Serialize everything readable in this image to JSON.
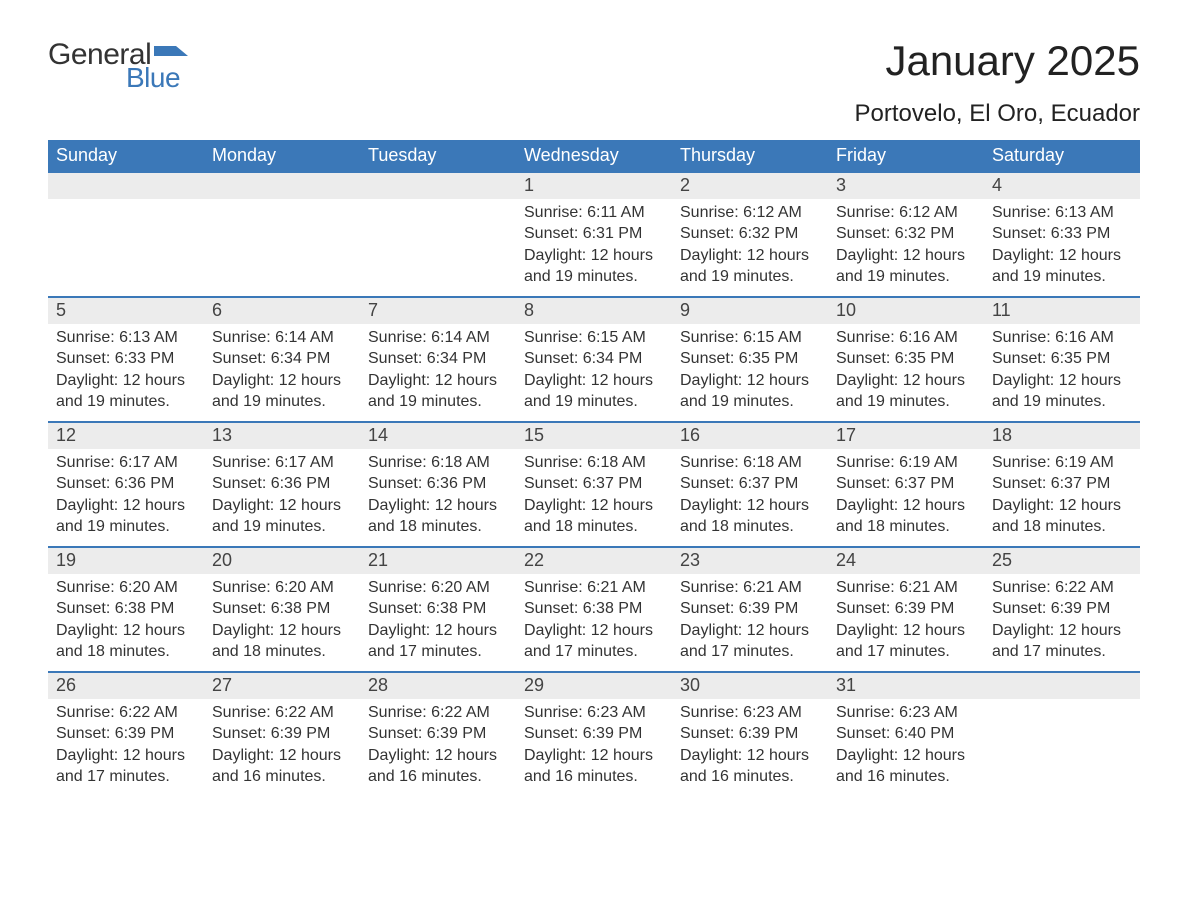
{
  "logo": {
    "text_general": "General",
    "text_blue": "Blue",
    "flag_color": "#3b78b8"
  },
  "header": {
    "month_title": "January 2025",
    "location": "Portovelo, El Oro, Ecuador"
  },
  "colors": {
    "header_bg": "#3b78b8",
    "header_text": "#ffffff",
    "daynum_bg": "#ececec",
    "border_top": "#3b78b8",
    "body_text": "#333333",
    "page_bg": "#ffffff"
  },
  "fonts": {
    "title_size_pt": 32,
    "location_size_pt": 18,
    "weekday_size_pt": 14,
    "daynum_size_pt": 14,
    "body_size_pt": 12
  },
  "weekdays": [
    "Sunday",
    "Monday",
    "Tuesday",
    "Wednesday",
    "Thursday",
    "Friday",
    "Saturday"
  ],
  "weeks": [
    [
      {
        "empty": true
      },
      {
        "empty": true
      },
      {
        "empty": true
      },
      {
        "day": "1",
        "sunrise": "Sunrise: 6:11 AM",
        "sunset": "Sunset: 6:31 PM",
        "daylight": "Daylight: 12 hours and 19 minutes."
      },
      {
        "day": "2",
        "sunrise": "Sunrise: 6:12 AM",
        "sunset": "Sunset: 6:32 PM",
        "daylight": "Daylight: 12 hours and 19 minutes."
      },
      {
        "day": "3",
        "sunrise": "Sunrise: 6:12 AM",
        "sunset": "Sunset: 6:32 PM",
        "daylight": "Daylight: 12 hours and 19 minutes."
      },
      {
        "day": "4",
        "sunrise": "Sunrise: 6:13 AM",
        "sunset": "Sunset: 6:33 PM",
        "daylight": "Daylight: 12 hours and 19 minutes."
      }
    ],
    [
      {
        "day": "5",
        "sunrise": "Sunrise: 6:13 AM",
        "sunset": "Sunset: 6:33 PM",
        "daylight": "Daylight: 12 hours and 19 minutes."
      },
      {
        "day": "6",
        "sunrise": "Sunrise: 6:14 AM",
        "sunset": "Sunset: 6:34 PM",
        "daylight": "Daylight: 12 hours and 19 minutes."
      },
      {
        "day": "7",
        "sunrise": "Sunrise: 6:14 AM",
        "sunset": "Sunset: 6:34 PM",
        "daylight": "Daylight: 12 hours and 19 minutes."
      },
      {
        "day": "8",
        "sunrise": "Sunrise: 6:15 AM",
        "sunset": "Sunset: 6:34 PM",
        "daylight": "Daylight: 12 hours and 19 minutes."
      },
      {
        "day": "9",
        "sunrise": "Sunrise: 6:15 AM",
        "sunset": "Sunset: 6:35 PM",
        "daylight": "Daylight: 12 hours and 19 minutes."
      },
      {
        "day": "10",
        "sunrise": "Sunrise: 6:16 AM",
        "sunset": "Sunset: 6:35 PM",
        "daylight": "Daylight: 12 hours and 19 minutes."
      },
      {
        "day": "11",
        "sunrise": "Sunrise: 6:16 AM",
        "sunset": "Sunset: 6:35 PM",
        "daylight": "Daylight: 12 hours and 19 minutes."
      }
    ],
    [
      {
        "day": "12",
        "sunrise": "Sunrise: 6:17 AM",
        "sunset": "Sunset: 6:36 PM",
        "daylight": "Daylight: 12 hours and 19 minutes."
      },
      {
        "day": "13",
        "sunrise": "Sunrise: 6:17 AM",
        "sunset": "Sunset: 6:36 PM",
        "daylight": "Daylight: 12 hours and 19 minutes."
      },
      {
        "day": "14",
        "sunrise": "Sunrise: 6:18 AM",
        "sunset": "Sunset: 6:36 PM",
        "daylight": "Daylight: 12 hours and 18 minutes."
      },
      {
        "day": "15",
        "sunrise": "Sunrise: 6:18 AM",
        "sunset": "Sunset: 6:37 PM",
        "daylight": "Daylight: 12 hours and 18 minutes."
      },
      {
        "day": "16",
        "sunrise": "Sunrise: 6:18 AM",
        "sunset": "Sunset: 6:37 PM",
        "daylight": "Daylight: 12 hours and 18 minutes."
      },
      {
        "day": "17",
        "sunrise": "Sunrise: 6:19 AM",
        "sunset": "Sunset: 6:37 PM",
        "daylight": "Daylight: 12 hours and 18 minutes."
      },
      {
        "day": "18",
        "sunrise": "Sunrise: 6:19 AM",
        "sunset": "Sunset: 6:37 PM",
        "daylight": "Daylight: 12 hours and 18 minutes."
      }
    ],
    [
      {
        "day": "19",
        "sunrise": "Sunrise: 6:20 AM",
        "sunset": "Sunset: 6:38 PM",
        "daylight": "Daylight: 12 hours and 18 minutes."
      },
      {
        "day": "20",
        "sunrise": "Sunrise: 6:20 AM",
        "sunset": "Sunset: 6:38 PM",
        "daylight": "Daylight: 12 hours and 18 minutes."
      },
      {
        "day": "21",
        "sunrise": "Sunrise: 6:20 AM",
        "sunset": "Sunset: 6:38 PM",
        "daylight": "Daylight: 12 hours and 17 minutes."
      },
      {
        "day": "22",
        "sunrise": "Sunrise: 6:21 AM",
        "sunset": "Sunset: 6:38 PM",
        "daylight": "Daylight: 12 hours and 17 minutes."
      },
      {
        "day": "23",
        "sunrise": "Sunrise: 6:21 AM",
        "sunset": "Sunset: 6:39 PM",
        "daylight": "Daylight: 12 hours and 17 minutes."
      },
      {
        "day": "24",
        "sunrise": "Sunrise: 6:21 AM",
        "sunset": "Sunset: 6:39 PM",
        "daylight": "Daylight: 12 hours and 17 minutes."
      },
      {
        "day": "25",
        "sunrise": "Sunrise: 6:22 AM",
        "sunset": "Sunset: 6:39 PM",
        "daylight": "Daylight: 12 hours and 17 minutes."
      }
    ],
    [
      {
        "day": "26",
        "sunrise": "Sunrise: 6:22 AM",
        "sunset": "Sunset: 6:39 PM",
        "daylight": "Daylight: 12 hours and 17 minutes."
      },
      {
        "day": "27",
        "sunrise": "Sunrise: 6:22 AM",
        "sunset": "Sunset: 6:39 PM",
        "daylight": "Daylight: 12 hours and 16 minutes."
      },
      {
        "day": "28",
        "sunrise": "Sunrise: 6:22 AM",
        "sunset": "Sunset: 6:39 PM",
        "daylight": "Daylight: 12 hours and 16 minutes."
      },
      {
        "day": "29",
        "sunrise": "Sunrise: 6:23 AM",
        "sunset": "Sunset: 6:39 PM",
        "daylight": "Daylight: 12 hours and 16 minutes."
      },
      {
        "day": "30",
        "sunrise": "Sunrise: 6:23 AM",
        "sunset": "Sunset: 6:39 PM",
        "daylight": "Daylight: 12 hours and 16 minutes."
      },
      {
        "day": "31",
        "sunrise": "Sunrise: 6:23 AM",
        "sunset": "Sunset: 6:40 PM",
        "daylight": "Daylight: 12 hours and 16 minutes."
      },
      {
        "empty": true
      }
    ]
  ]
}
